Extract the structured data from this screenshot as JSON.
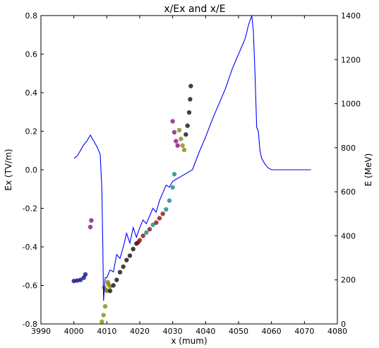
{
  "chart_data": {
    "type": "line",
    "title": "x/Ex and x/E",
    "xlabel": "x (mum)",
    "ylabel_left": "Ex (TV/m)",
    "ylabel_right": "E (MeV)",
    "xlim": [
      3990,
      4080
    ],
    "ylim_left": [
      -0.8,
      0.8
    ],
    "ylim_right": [
      0,
      1400
    ],
    "x_ticks": [
      "3990",
      "4000",
      "4010",
      "4020",
      "4030",
      "4040",
      "4050",
      "4060",
      "4070",
      "4080"
    ],
    "y_left_ticks": [
      "-0.8",
      "-0.6",
      "-0.4",
      "-0.2",
      "0.0",
      "0.2",
      "0.4",
      "0.6",
      "0.8"
    ],
    "y_right_ticks": [
      "0",
      "200",
      "400",
      "600",
      "800",
      "1000",
      "1200",
      "1400"
    ],
    "grid": false,
    "colors": {
      "field_line": "#0000ff",
      "particles_dark": "#000000",
      "particles_navy": "#000080",
      "particles_olive": "#808000",
      "particles_teal": "#008080",
      "particles_maroon": "#800000",
      "particles_purple": "#800080"
    },
    "series": [
      {
        "axis": "left",
        "x": [
          4000,
          4001,
          4002,
          4003,
          4004,
          4005,
          4006,
          4007,
          4008,
          4008.5,
          4008.8,
          4009,
          4009.5,
          4010,
          4011,
          4012,
          4013,
          4014,
          4015,
          4016,
          4017,
          4018,
          4019,
          4020,
          4021,
          4022,
          4023,
          4024,
          4025,
          4026,
          4027,
          4028,
          4029,
          4030,
          4031,
          4032,
          4033,
          4034,
          4035,
          4036,
          4038,
          4040,
          4042,
          4044,
          4046,
          4048,
          4050,
          4052,
          4053,
          4054,
          4054.5,
          4055,
          4055.5,
          4056,
          4056.5,
          4057,
          4058,
          4059,
          4060,
          4062,
          4065,
          4068,
          4072
        ],
        "values": [
          0.06,
          0.07,
          0.1,
          0.13,
          0.15,
          0.18,
          0.15,
          0.12,
          0.08,
          -0.1,
          -0.4,
          -0.68,
          -0.56,
          -0.56,
          -0.52,
          -0.53,
          -0.44,
          -0.46,
          -0.4,
          -0.33,
          -0.38,
          -0.3,
          -0.35,
          -0.3,
          -0.26,
          -0.28,
          -0.24,
          -0.2,
          -0.22,
          -0.16,
          -0.12,
          -0.08,
          -0.09,
          -0.06,
          -0.05,
          -0.04,
          -0.03,
          -0.02,
          -0.01,
          0.0,
          0.09,
          0.17,
          0.26,
          0.34,
          0.42,
          0.52,
          0.6,
          0.68,
          0.75,
          0.8,
          0.72,
          0.5,
          0.22,
          0.2,
          0.1,
          0.06,
          0.03,
          0.01,
          0.0,
          0.0,
          0.0,
          0.0,
          0.0
        ]
      }
    ],
    "scatter_groups": [
      {
        "color": "navy",
        "axis": "right",
        "x": [
          4000,
          4001,
          4002,
          4003,
          4003.5
        ],
        "values": [
          195,
          197,
          200,
          210,
          225
        ]
      },
      {
        "color": "olive",
        "axis": "right",
        "x": [
          4008.5,
          4009,
          4009.5,
          4010,
          4010.5,
          4011,
          4009.2,
          4009.8,
          4010.3
        ],
        "values": [
          10,
          40,
          80,
          150,
          180,
          170,
          165,
          155,
          190
        ]
      },
      {
        "color": "dark",
        "axis": "right",
        "x": [
          4011,
          4012,
          4013,
          4014,
          4015,
          4016,
          4017,
          4018,
          4019
        ],
        "values": [
          150,
          175,
          200,
          235,
          260,
          290,
          310,
          340,
          365
        ]
      },
      {
        "color": "maroon",
        "axis": "right",
        "x": [
          4019.5,
          4020,
          4021,
          4023,
          4025,
          4026,
          4027
        ],
        "values": [
          370,
          380,
          400,
          430,
          460,
          480,
          500
        ]
      },
      {
        "color": "teal",
        "axis": "right",
        "x": [
          4022,
          4024,
          4028,
          4029,
          4030,
          4030.5
        ],
        "values": [
          415,
          450,
          520,
          560,
          620,
          680
        ]
      },
      {
        "color": "purple",
        "axis": "right",
        "x": [
          4030,
          4030.5,
          4031,
          4031.5,
          4005,
          4005.3
        ],
        "values": [
          920,
          870,
          830,
          810,
          440,
          470
        ]
      },
      {
        "color": "olive",
        "axis": "right",
        "x": [
          4032,
          4032.5,
          4033,
          4033.5
        ],
        "values": [
          880,
          840,
          810,
          790
        ]
      },
      {
        "color": "dark",
        "axis": "right",
        "x": [
          4034,
          4034.5,
          4035,
          4035.3,
          4035.5
        ],
        "values": [
          860,
          900,
          960,
          1020,
          1080
        ]
      }
    ]
  }
}
